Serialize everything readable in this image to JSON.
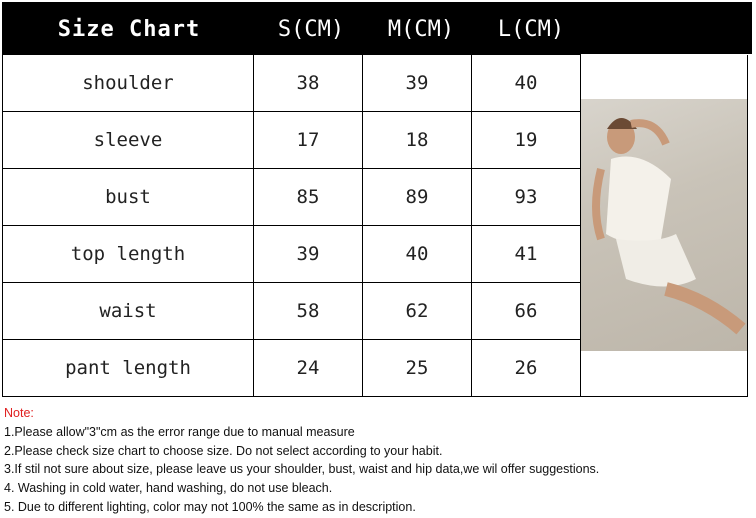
{
  "header": {
    "title": "Size Chart",
    "columns": [
      "S(CM)",
      "M(CM)",
      "L(CM)"
    ]
  },
  "rows": [
    {
      "label": "shoulder",
      "values": [
        "38",
        "39",
        "40"
      ]
    },
    {
      "label": "sleeve",
      "values": [
        "17",
        "18",
        "19"
      ]
    },
    {
      "label": "bust",
      "values": [
        "85",
        "89",
        "93"
      ]
    },
    {
      "label": "top length",
      "values": [
        "39",
        "40",
        "41"
      ]
    },
    {
      "label": "waist",
      "values": [
        "58",
        "62",
        "66"
      ]
    },
    {
      "label": "pant length",
      "values": [
        "24",
        "25",
        "26"
      ]
    }
  ],
  "notes": {
    "title": "Note:",
    "items": [
      "1.Please allow\"3\"cm as the error range due to manual measure",
      "2.Please check size chart to choose size. Do not select according to your habit.",
      "3.If stil not sure about size, please leave us your shoulder, bust, waist and hip data,we wil offer suggestions.",
      "4. Washing in cold water, hand washing, do not use bleach.",
      "5. Due to different lighting, color may not 100% the same as in description."
    ]
  },
  "colors": {
    "header_bg": "#000000",
    "note_title": "#e02020"
  }
}
